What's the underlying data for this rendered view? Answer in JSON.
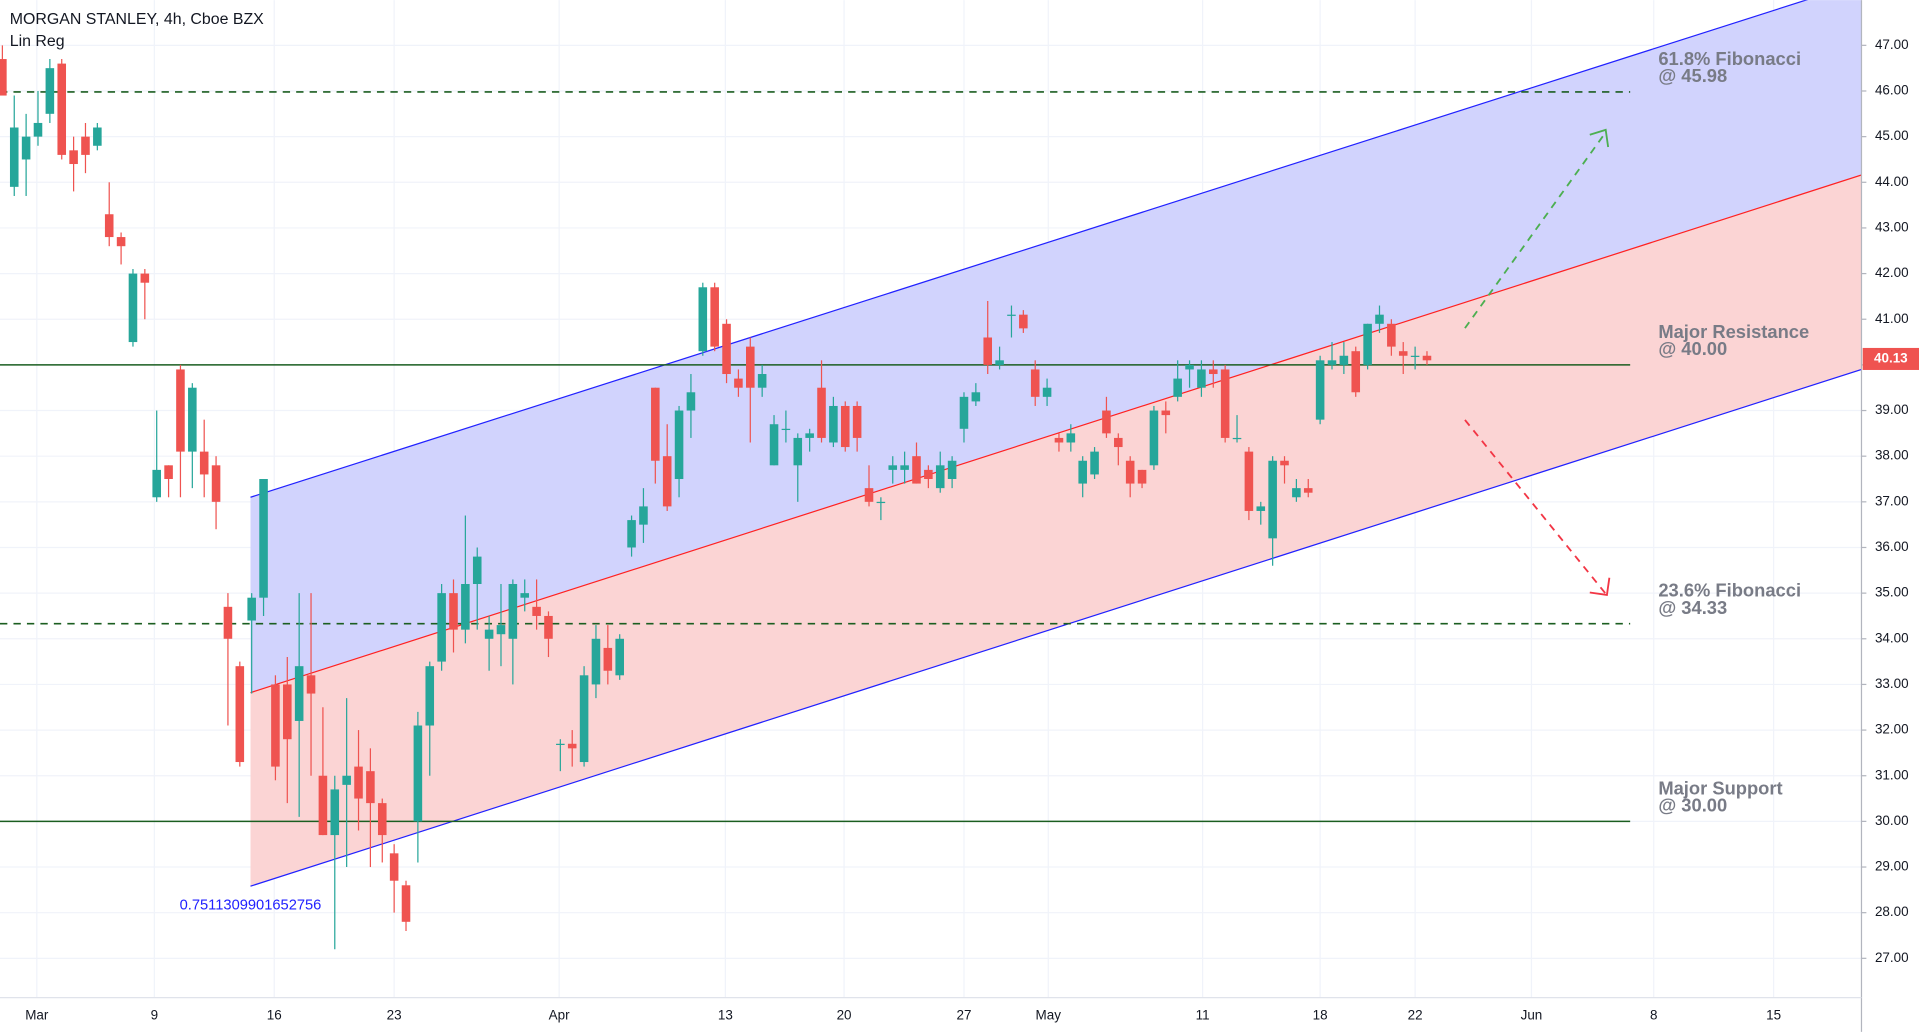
{
  "chart_data": {
    "type": "candlestick",
    "title": "MORGAN STANLEY, 4h, Cboe BZX",
    "subtitle": "Lin Reg",
    "up_color": "#26a69a",
    "down_color": "#ef5350",
    "grid": true,
    "x": [
      0,
      1,
      2,
      3,
      4,
      5,
      6,
      7,
      8,
      9,
      10,
      11,
      12,
      13,
      14,
      15,
      16,
      17,
      18,
      19,
      20,
      21,
      22,
      23,
      24,
      25,
      26,
      27,
      28,
      29,
      30,
      31,
      32,
      33,
      34,
      35,
      36,
      37,
      38,
      39,
      40,
      41,
      42,
      43,
      44,
      45,
      46,
      47,
      48,
      49,
      50,
      51,
      52,
      53,
      54,
      55,
      56,
      57,
      58,
      59,
      60,
      61,
      62,
      63,
      64,
      65,
      66,
      67,
      68,
      69,
      70,
      71,
      72,
      73,
      74,
      75,
      76,
      77,
      78,
      79,
      80,
      81,
      82,
      83,
      84,
      85,
      86,
      87,
      88,
      89,
      90,
      91,
      92,
      93,
      94,
      95,
      96,
      97,
      98,
      99,
      100,
      101,
      102,
      103,
      104,
      105,
      106,
      107,
      108,
      109,
      110,
      111,
      112,
      113,
      114,
      115,
      116,
      117,
      118,
      119,
      120
    ],
    "open": [
      46.7,
      43.9,
      44.5,
      45,
      45.5,
      46.6,
      44.7,
      45,
      44.8,
      43.3,
      42.8,
      40.5,
      42,
      37.1,
      37.8,
      39.9,
      38.1,
      38.1,
      37.8,
      34.7,
      33.4,
      34.4,
      34.9,
      33,
      33,
      32.2,
      33.2,
      31,
      29.7,
      30.8,
      31.2,
      31.1,
      30.4,
      29.3,
      28.6,
      30,
      32.1,
      33.5,
      35,
      34.2,
      35.2,
      34,
      34.1,
      34,
      34.9,
      34.7,
      34.5,
      31.7,
      31.7,
      31.3,
      33,
      33.8,
      33.2,
      36,
      36.5,
      39.5,
      38,
      37.5,
      39,
      40.3,
      41.7,
      40.9,
      39.7,
      40.4,
      39.5,
      37.8,
      38.6,
      37.8,
      38.4,
      39.5,
      38.3,
      39.1,
      39.1,
      37.3,
      37,
      37.7,
      37.7,
      38,
      37.7,
      37.3,
      37.5,
      38.6,
      39.2,
      40.6,
      40,
      41.1,
      41.1,
      39.9,
      39.3,
      38.4,
      38.3,
      37.4,
      37.6,
      39,
      38.4,
      37.9,
      37.7,
      37.8,
      39,
      39.3,
      39.9,
      39.5,
      39.9,
      39.9,
      38.4,
      38.1,
      36.8,
      36.2,
      37.9,
      37.1,
      37.3,
      38.8,
      40,
      40,
      40.3,
      40,
      40.9,
      40.9,
      40.3,
      40.2,
      40.2
    ],
    "high": [
      47,
      45.9,
      45.5,
      46,
      46.7,
      46.7,
      45,
      45.3,
      45.3,
      44,
      42.9,
      42.1,
      42.1,
      39,
      37.8,
      40,
      39.6,
      38.8,
      38,
      35,
      33.5,
      35,
      37.5,
      33.2,
      33.6,
      35,
      35,
      32.5,
      31,
      32.7,
      32,
      31.6,
      30.5,
      29.5,
      28.7,
      32.4,
      33.5,
      35.2,
      35.3,
      36.7,
      36,
      34.5,
      35.2,
      35.3,
      35.3,
      35.3,
      34.6,
      31.8,
      32,
      33.4,
      34.3,
      34.3,
      34.1,
      36.7,
      37.3,
      39.5,
      38.7,
      39.1,
      39.8,
      41.8,
      41.8,
      41,
      39.9,
      40.6,
      40,
      38.9,
      39,
      38.5,
      38.6,
      40.1,
      39.3,
      39.2,
      39.2,
      37.8,
      37.1,
      38,
      38.1,
      38.3,
      37.8,
      38.1,
      38,
      39.4,
      39.6,
      41.4,
      40.4,
      41.3,
      41.2,
      40.1,
      39.7,
      38.5,
      38.7,
      38,
      38.2,
      39.3,
      38.5,
      38,
      37.7,
      39.1,
      39.2,
      40.1,
      40.1,
      40.1,
      40.1,
      40,
      38.9,
      38.2,
      37,
      38,
      38,
      37.5,
      37.5,
      40.2,
      40.5,
      40.5,
      40.4,
      40.9,
      41.3,
      41,
      40.5,
      40.4,
      40.3
    ],
    "low": [
      45.9,
      43.7,
      43.7,
      44.8,
      45.3,
      44.5,
      43.8,
      44.2,
      44.7,
      42.6,
      42.2,
      40.4,
      41,
      37,
      37.1,
      37.1,
      37.3,
      37.1,
      36.4,
      32.1,
      31.2,
      32.8,
      34.5,
      30.9,
      30.4,
      30.1,
      31,
      29.7,
      27.2,
      29,
      29.8,
      29,
      29.1,
      28,
      27.6,
      29.1,
      31,
      33.3,
      33.7,
      33.9,
      34.2,
      33.3,
      33.4,
      33,
      34.6,
      34.2,
      33.6,
      31.1,
      31.2,
      31.2,
      32.7,
      33,
      33.1,
      35.8,
      36.1,
      37.4,
      36.8,
      37.1,
      38.4,
      40.2,
      40.3,
      39.6,
      39.3,
      38.3,
      39.3,
      37.8,
      38.3,
      37,
      38.1,
      38.3,
      38.2,
      38.1,
      38.1,
      36.9,
      36.6,
      37.4,
      37.4,
      37.4,
      37.3,
      37.2,
      37.3,
      38.3,
      39.1,
      39.8,
      39.9,
      40.6,
      40.7,
      39.1,
      39.1,
      38.1,
      38.1,
      37.1,
      37.5,
      38.4,
      37.8,
      37.1,
      37.3,
      37.7,
      38.5,
      39.2,
      39.5,
      39.3,
      39.5,
      38.3,
      38.3,
      36.6,
      36.5,
      35.6,
      37.4,
      37,
      37.1,
      38.7,
      39.9,
      39.8,
      39.3,
      39.9,
      40.7,
      40.2,
      39.8,
      39.9,
      40
    ],
    "close": [
      45.9,
      45.2,
      45,
      45.3,
      46.5,
      44.6,
      44.4,
      44.6,
      45.2,
      42.8,
      42.6,
      42,
      41.8,
      37.7,
      37.5,
      38.1,
      39.5,
      37.6,
      37,
      34,
      31.3,
      34.9,
      37.5,
      31.2,
      31.8,
      33.4,
      32.8,
      29.7,
      30.7,
      31,
      30.5,
      30.4,
      29.7,
      28.7,
      27.8,
      32.1,
      33.4,
      35,
      34.2,
      35.2,
      35.8,
      34.2,
      34.3,
      35.2,
      35,
      34.5,
      34,
      31.7,
      31.6,
      33.2,
      34,
      33.3,
      34,
      36.6,
      36.9,
      37.9,
      36.9,
      39,
      39.4,
      41.7,
      40.4,
      39.8,
      39.5,
      39.5,
      39.8,
      38.7,
      38.6,
      38.4,
      38.5,
      38.4,
      39.1,
      38.2,
      38.4,
      37,
      37,
      37.8,
      37.8,
      37.4,
      37.5,
      37.8,
      37.9,
      39.3,
      39.4,
      40,
      40.1,
      41.1,
      40.8,
      39.3,
      39.5,
      38.3,
      38.5,
      37.9,
      38.1,
      38.5,
      38.2,
      37.4,
      37.4,
      39,
      38.9,
      39.7,
      40,
      39.9,
      39.8,
      38.4,
      38.4,
      36.8,
      36.9,
      37.9,
      37.8,
      37.3,
      37.2,
      40.1,
      40.1,
      40.2,
      39.4,
      40.9,
      41.1,
      40.4,
      40.2,
      40.2,
      40.1
    ],
    "last_price": 40.13,
    "xlim": [
      -0.2,
      156.6
    ],
    "ylim": [
      26.14,
      47.99
    ],
    "xticks": [
      {
        "value": 2.9,
        "label": "Mar"
      },
      {
        "value": 12.8,
        "label": "9"
      },
      {
        "value": 22.9,
        "label": "16"
      },
      {
        "value": 33.0,
        "label": "23"
      },
      {
        "value": 46.9,
        "label": "Apr"
      },
      {
        "value": 60.9,
        "label": "13"
      },
      {
        "value": 70.9,
        "label": "20"
      },
      {
        "value": 81.0,
        "label": "27"
      },
      {
        "value": 88.1,
        "label": "May"
      },
      {
        "value": 101.1,
        "label": "11"
      },
      {
        "value": 111.0,
        "label": "18"
      },
      {
        "value": 119.0,
        "label": "22"
      },
      {
        "value": 128.8,
        "label": "Jun"
      },
      {
        "value": 139.1,
        "label": "8"
      },
      {
        "value": 149.2,
        "label": "15"
      }
    ],
    "yticks": [
      {
        "value": 27,
        "label": "27.00"
      },
      {
        "value": 28,
        "label": "28.00"
      },
      {
        "value": 29,
        "label": "29.00"
      },
      {
        "value": 30,
        "label": "30.00"
      },
      {
        "value": 31,
        "label": "31.00"
      },
      {
        "value": 32,
        "label": "32.00"
      },
      {
        "value": 33,
        "label": "33.00"
      },
      {
        "value": 34,
        "label": "34.00"
      },
      {
        "value": 35,
        "label": "35.00"
      },
      {
        "value": 36,
        "label": "36.00"
      },
      {
        "value": 37,
        "label": "37.00"
      },
      {
        "value": 38,
        "label": "38.00"
      },
      {
        "value": 39,
        "label": "39.00"
      },
      {
        "value": 40,
        "label": "40.00"
      },
      {
        "value": 41,
        "label": "41.00"
      },
      {
        "value": 42,
        "label": "42.00"
      },
      {
        "value": 43,
        "label": "43.00"
      },
      {
        "value": 44,
        "label": "44.00"
      },
      {
        "value": 45,
        "label": "45.00"
      },
      {
        "value": 46,
        "label": "46.00"
      },
      {
        "value": 47,
        "label": "47.00"
      }
    ],
    "channel": {
      "label": "0.7511309901652756",
      "x": [
        20.9,
        156.6
      ],
      "upper": [
        37.1,
        48.38
      ],
      "middle": [
        32.82,
        44.16
      ],
      "lower": [
        28.58,
        39.9
      ],
      "upper_color": "#2121ff",
      "middle_color": "#ff2121",
      "upper_fill": "#d1d3fd",
      "lower_fill": "#fbd4d4"
    },
    "levels": [
      {
        "value": 45.98,
        "dashed": true,
        "color": "#1b5e20",
        "label": "61.8% Fibonacci",
        "sublabel": "@ 45.98"
      },
      {
        "value": 40,
        "dashed": false,
        "color": "#1b5e20",
        "label": "Major Resistance",
        "sublabel": "@ 40.00"
      },
      {
        "value": 34.33,
        "dashed": true,
        "color": "#1b5e20",
        "label": "23.6% Fibonacci",
        "sublabel": "@ 34.33"
      },
      {
        "value": 30,
        "dashed": false,
        "color": "#1b5e20",
        "label": "Major Support",
        "sublabel": "@ 30.00"
      }
    ]
  }
}
